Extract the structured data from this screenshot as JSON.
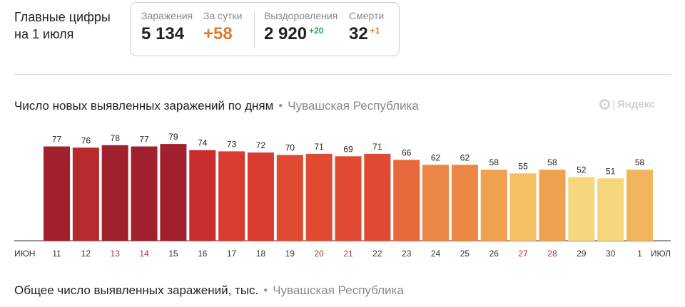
{
  "headline": "Главные цифры на 1 июля",
  "stats": {
    "infections_label": "Заражения",
    "infections_value": "5 134",
    "daily_label": "За сутки",
    "daily_value": "+58",
    "recovered_label": "Выздоровления",
    "recovered_value": "2 920",
    "recovered_delta": "+20",
    "deaths_label": "Смерти",
    "deaths_value": "32",
    "deaths_delta": "+1"
  },
  "logo_text": "Яндекс",
  "footer": {
    "title": "Общее число выявленных заражений, тыс.",
    "separator": "•",
    "region": "Чувашская Республика"
  },
  "chart_data": {
    "type": "bar",
    "title": "Число новых выявленных заражений по дням",
    "separator": "•",
    "region": "Чувашская Республика",
    "x_start_label": "июн",
    "x_end_label": "июл",
    "categories": [
      "11",
      "12",
      "13",
      "14",
      "15",
      "16",
      "17",
      "18",
      "19",
      "20",
      "21",
      "22",
      "23",
      "24",
      "25",
      "26",
      "27",
      "28",
      "29",
      "30",
      "1"
    ],
    "values": [
      77,
      76,
      78,
      77,
      79,
      74,
      73,
      72,
      70,
      71,
      69,
      71,
      66,
      62,
      62,
      58,
      55,
      58,
      52,
      51,
      58
    ],
    "weekend": [
      false,
      false,
      true,
      true,
      false,
      false,
      false,
      false,
      false,
      true,
      true,
      false,
      false,
      false,
      false,
      false,
      true,
      true,
      false,
      false,
      false
    ],
    "colors": [
      "#a0202d",
      "#b72a2e",
      "#a0202d",
      "#a0202d",
      "#a0202d",
      "#c92e2f",
      "#d83b2f",
      "#d83b2f",
      "#e14a32",
      "#e14a32",
      "#e14a32",
      "#e14a32",
      "#e8683c",
      "#ec8645",
      "#ec8645",
      "#f0a14f",
      "#f5bf64",
      "#f0a14f",
      "#f7d77e",
      "#f7d77e",
      "#f0b55e"
    ],
    "ylim": [
      0,
      100
    ],
    "grid": false
  }
}
